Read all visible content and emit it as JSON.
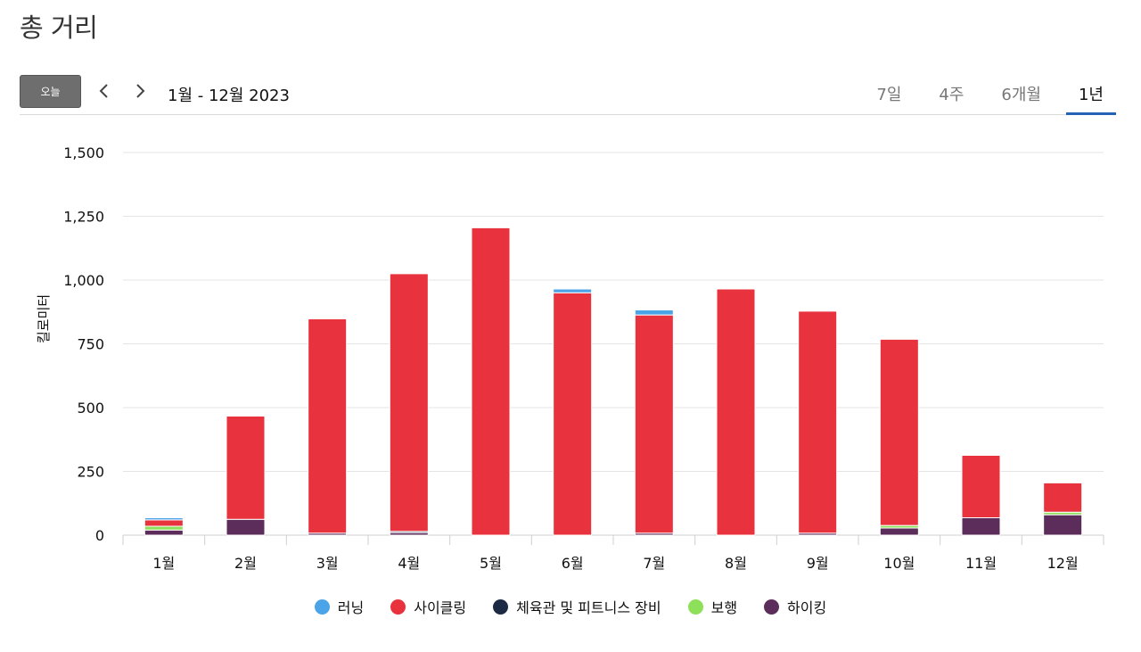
{
  "header": {
    "title": "총 거리"
  },
  "toolbar": {
    "today_label": "오늘",
    "date_range": "1월 - 12월 2023",
    "tabs": [
      {
        "label": "7일",
        "active": false
      },
      {
        "label": "4주",
        "active": false
      },
      {
        "label": "6개월",
        "active": false
      },
      {
        "label": "1년",
        "active": true
      }
    ]
  },
  "chart_data": {
    "type": "bar",
    "stacked": true,
    "ylabel": "킬로미터",
    "ylim": [
      0,
      1500
    ],
    "yticks": [
      0,
      250,
      500,
      750,
      1000,
      1250,
      1500
    ],
    "ytick_labels": [
      "0",
      "250",
      "500",
      "750",
      "1,000",
      "1,250",
      "1,500"
    ],
    "categories": [
      "1월",
      "2월",
      "3월",
      "4월",
      "5월",
      "6월",
      "7월",
      "8월",
      "9월",
      "10월",
      "11월",
      "12월"
    ],
    "series": [
      {
        "name": "하이킹",
        "color": "#5c2d5a",
        "values": [
          20,
          62,
          8,
          10,
          0,
          0,
          8,
          0,
          8,
          28,
          68,
          80
        ]
      },
      {
        "name": "체육관 및 피트니스 장비",
        "color": "#1c2a44",
        "values": [
          0,
          0,
          0,
          5,
          0,
          0,
          0,
          0,
          0,
          0,
          0,
          0
        ]
      },
      {
        "name": "보행",
        "color": "#8ee05a",
        "values": [
          15,
          0,
          0,
          0,
          0,
          0,
          0,
          0,
          0,
          10,
          0,
          10
        ]
      },
      {
        "name": "사이클링",
        "color": "#e8323e",
        "values": [
          25,
          405,
          840,
          1010,
          1205,
          950,
          855,
          965,
          870,
          730,
          245,
          115
        ]
      },
      {
        "name": "러닝",
        "color": "#4ba3e8",
        "values": [
          8,
          0,
          0,
          0,
          0,
          15,
          20,
          0,
          0,
          0,
          0,
          0
        ]
      }
    ],
    "legend_order": [
      "러닝",
      "사이클링",
      "체육관 및 피트니스 장비",
      "보행",
      "하이킹"
    ],
    "legend_position": "bottom",
    "grid": true
  }
}
